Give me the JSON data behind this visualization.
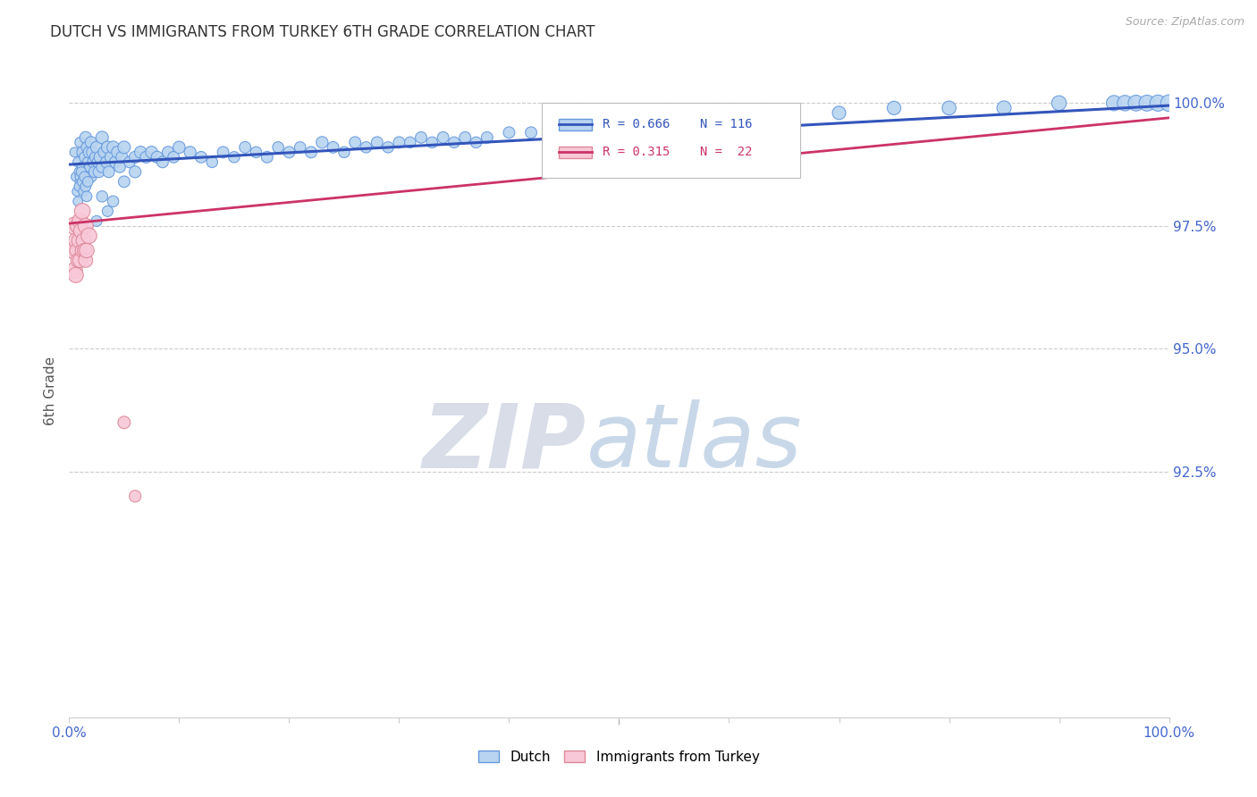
{
  "title": "DUTCH VS IMMIGRANTS FROM TURKEY 6TH GRADE CORRELATION CHART",
  "source_text": "Source: ZipAtlas.com",
  "ylabel": "6th Grade",
  "watermark_zip": "ZIP",
  "watermark_atlas": "atlas",
  "xmin": 0.0,
  "xmax": 1.0,
  "ymin": 0.875,
  "ymax": 1.008,
  "yticks": [
    0.925,
    0.95,
    0.975,
    1.0
  ],
  "ytick_labels": [
    "92.5%",
    "95.0%",
    "97.5%",
    "100.0%"
  ],
  "xticks": [
    0.0,
    0.1,
    0.2,
    0.3,
    0.4,
    0.5,
    0.6,
    0.7,
    0.8,
    0.9,
    1.0
  ],
  "xtick_labels": [
    "0.0%",
    "",
    "",
    "",
    "",
    "",
    "",
    "",
    "",
    "",
    "100.0%"
  ],
  "dutch_R": 0.666,
  "dutch_N": 116,
  "turkey_R": 0.315,
  "turkey_N": 22,
  "dutch_color": "#b8d4f0",
  "dutch_edge_color": "#6699dd",
  "dutch_line_color": "#3355bb",
  "turkey_color": "#f8c8d8",
  "turkey_edge_color": "#dd8899",
  "turkey_line_color": "#cc3366",
  "dutch_label": "Dutch",
  "turkey_label": "Immigrants from Turkey",
  "background_color": "#ffffff",
  "grid_color": "#cccccc",
  "grid_style": "--",
  "title_color": "#333333",
  "axis_label_color": "#555555",
  "ytick_color": "#4466cc",
  "xtick_color": "#4466cc",
  "source_color": "#aaaaaa",
  "watermark_zip_color": "#d8dde8",
  "watermark_atlas_color": "#c8d8e8",
  "dutch_points_x": [
    0.005,
    0.006,
    0.007,
    0.008,
    0.009,
    0.01,
    0.01,
    0.012,
    0.012,
    0.013,
    0.014,
    0.015,
    0.015,
    0.016,
    0.017,
    0.018,
    0.019,
    0.02,
    0.02,
    0.021,
    0.022,
    0.023,
    0.024,
    0.025,
    0.026,
    0.027,
    0.028,
    0.03,
    0.03,
    0.032,
    0.034,
    0.035,
    0.036,
    0.038,
    0.04,
    0.042,
    0.044,
    0.046,
    0.048,
    0.05,
    0.055,
    0.06,
    0.065,
    0.07,
    0.075,
    0.08,
    0.085,
    0.09,
    0.095,
    0.1,
    0.11,
    0.12,
    0.13,
    0.14,
    0.15,
    0.16,
    0.17,
    0.18,
    0.19,
    0.2,
    0.21,
    0.22,
    0.23,
    0.24,
    0.25,
    0.26,
    0.27,
    0.28,
    0.29,
    0.3,
    0.31,
    0.32,
    0.33,
    0.34,
    0.35,
    0.36,
    0.37,
    0.38,
    0.4,
    0.42,
    0.44,
    0.46,
    0.48,
    0.5,
    0.52,
    0.54,
    0.56,
    0.6,
    0.65,
    0.7,
    0.75,
    0.8,
    0.85,
    0.9,
    0.95,
    0.96,
    0.97,
    0.98,
    0.99,
    1.0,
    0.008,
    0.009,
    0.01,
    0.011,
    0.012,
    0.013,
    0.014,
    0.015,
    0.016,
    0.017,
    0.025,
    0.03,
    0.035,
    0.04,
    0.05,
    0.06
  ],
  "dutch_points_y": [
    0.99,
    0.985,
    0.982,
    0.988,
    0.986,
    0.992,
    0.984,
    0.99,
    0.987,
    0.985,
    0.989,
    0.993,
    0.986,
    0.991,
    0.988,
    0.99,
    0.987,
    0.992,
    0.985,
    0.99,
    0.988,
    0.986,
    0.989,
    0.991,
    0.988,
    0.986,
    0.989,
    0.993,
    0.987,
    0.99,
    0.988,
    0.991,
    0.986,
    0.989,
    0.991,
    0.988,
    0.99,
    0.987,
    0.989,
    0.991,
    0.988,
    0.989,
    0.99,
    0.989,
    0.99,
    0.989,
    0.988,
    0.99,
    0.989,
    0.991,
    0.99,
    0.989,
    0.988,
    0.99,
    0.989,
    0.991,
    0.99,
    0.989,
    0.991,
    0.99,
    0.991,
    0.99,
    0.992,
    0.991,
    0.99,
    0.992,
    0.991,
    0.992,
    0.991,
    0.992,
    0.992,
    0.993,
    0.992,
    0.993,
    0.992,
    0.993,
    0.992,
    0.993,
    0.994,
    0.994,
    0.994,
    0.995,
    0.995,
    0.996,
    0.996,
    0.996,
    0.997,
    0.997,
    0.998,
    0.998,
    0.999,
    0.999,
    0.999,
    1.0,
    1.0,
    1.0,
    1.0,
    1.0,
    1.0,
    1.0,
    0.98,
    0.983,
    0.985,
    0.986,
    0.984,
    0.982,
    0.985,
    0.983,
    0.981,
    0.984,
    0.976,
    0.981,
    0.978,
    0.98,
    0.984,
    0.986
  ],
  "dutch_sizes": [
    60,
    55,
    55,
    65,
    60,
    70,
    65,
    80,
    70,
    65,
    75,
    90,
    75,
    80,
    70,
    85,
    75,
    90,
    80,
    85,
    90,
    80,
    85,
    95,
    80,
    85,
    90,
    100,
    85,
    95,
    90,
    100,
    85,
    95,
    100,
    90,
    95,
    85,
    90,
    100,
    85,
    90,
    95,
    90,
    95,
    90,
    85,
    90,
    85,
    95,
    90,
    85,
    80,
    85,
    80,
    85,
    80,
    85,
    80,
    85,
    80,
    85,
    90,
    85,
    80,
    85,
    80,
    85,
    80,
    85,
    80,
    85,
    80,
    85,
    80,
    85,
    80,
    85,
    85,
    85,
    85,
    90,
    90,
    95,
    95,
    95,
    100,
    105,
    110,
    115,
    120,
    125,
    130,
    140,
    150,
    155,
    160,
    165,
    170,
    180,
    60,
    60,
    65,
    65,
    65,
    65,
    70,
    70,
    70,
    70,
    75,
    80,
    75,
    80,
    85,
    90
  ],
  "turkey_points_x": [
    0.004,
    0.005,
    0.005,
    0.006,
    0.006,
    0.007,
    0.008,
    0.008,
    0.009,
    0.01,
    0.01,
    0.011,
    0.012,
    0.012,
    0.013,
    0.014,
    0.015,
    0.015,
    0.016,
    0.018,
    0.05,
    0.06
  ],
  "turkey_points_y": [
    0.97,
    0.975,
    0.966,
    0.972,
    0.965,
    0.97,
    0.975,
    0.968,
    0.972,
    0.976,
    0.968,
    0.974,
    0.97,
    0.978,
    0.972,
    0.97,
    0.975,
    0.968,
    0.97,
    0.973,
    0.935,
    0.92
  ],
  "turkey_sizes": [
    180,
    200,
    160,
    140,
    150,
    130,
    150,
    130,
    140,
    160,
    140,
    150,
    130,
    160,
    140,
    130,
    150,
    130,
    140,
    160,
    100,
    90
  ],
  "legend_R_dutch": "R = 0.666",
  "legend_N_dutch": "N = 116",
  "legend_R_turkey": "R = 0.315",
  "legend_N_turkey": "N =  22"
}
